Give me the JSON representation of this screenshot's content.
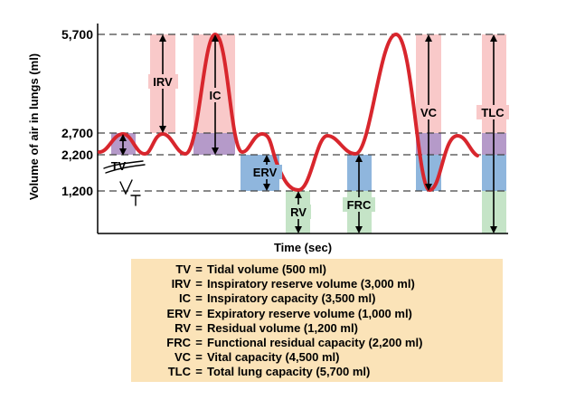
{
  "axes": {
    "y_label": "Volume of air in lungs (ml)",
    "y_ticks": [
      "5,700",
      "2,700",
      "2,200",
      "1,200"
    ],
    "x_label": "Time (sec)"
  },
  "volume_labels": {
    "irv": "IRV",
    "ic": "IC",
    "erv": "ERV",
    "rv": "RV",
    "frc": "FRC",
    "vc": "VC",
    "tlc": "TLC",
    "tv": "TV"
  },
  "handwritten_note": "V_T",
  "legend": [
    {
      "abbr": "TV",
      "definition": "Tidal volume (500 ml)"
    },
    {
      "abbr": "IRV",
      "definition": "Inspiratory reserve volume (3,000 ml)"
    },
    {
      "abbr": "IC",
      "definition": "Inspiratory capacity (3,500 ml)"
    },
    {
      "abbr": "ERV",
      "definition": "Expiratory reserve volume (1,000 ml)"
    },
    {
      "abbr": "RV",
      "definition": "Residual volume (1,200 ml)"
    },
    {
      "abbr": "FRC",
      "definition": "Functional residual capacity (2,200 ml)"
    },
    {
      "abbr": "VC",
      "definition": "Vital capacity (4,500 ml)"
    },
    {
      "abbr": "TLC",
      "definition": "Total lung capacity (5,700 ml)"
    }
  ],
  "colors": {
    "pink": "#f9c9c9",
    "purple": "#b59ac9",
    "blue": "#8fb6dd",
    "green": "#c5e4c7",
    "curve": "#d8262d",
    "legend_bg": "#fbe3b8"
  }
}
